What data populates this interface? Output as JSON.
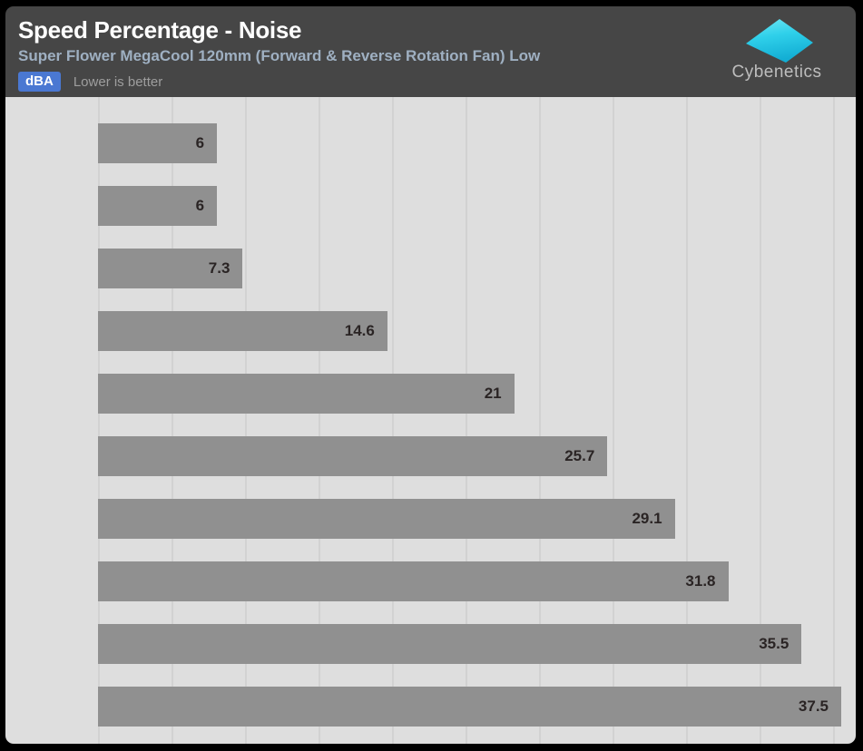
{
  "header": {
    "title": "Speed Percentage - Noise",
    "subtitle": "Super Flower MegaCool 120mm (Forward & Reverse Rotation Fan) Low",
    "unit_badge": "dBA",
    "note": "Lower is better",
    "brand": "Cybenetics"
  },
  "colors": {
    "header_bg": "#464646",
    "badge_bg": "#4a78d2",
    "subtitle": "#9fb0c2",
    "note_text": "#9e9e9e",
    "brand_text": "#bdbdbd",
    "chart_bg": "#dedede",
    "gridline": "#d2d2d2",
    "bar": "#909090",
    "bar_label": "#2a2424",
    "logo_top": "#55e0f2",
    "logo_bottom": "#13aed4"
  },
  "chart_data": {
    "type": "bar",
    "orientation": "horizontal",
    "title": "Speed Percentage - Noise",
    "subtitle": "Super Flower MegaCool 120mm (Forward & Reverse Rotation Fan) Low",
    "unit": "dBA",
    "note": "Lower is better",
    "values": [
      6,
      6,
      7.3,
      14.6,
      21,
      25.7,
      29.1,
      31.8,
      35.5,
      37.5
    ],
    "labels": [
      "6",
      "6",
      "7.3",
      "14.6",
      "21",
      "25.7",
      "29.1",
      "31.8",
      "35.5",
      "37.5"
    ],
    "xlim": [
      0,
      37.5
    ],
    "grid": "vertical",
    "gridline_count": 11,
    "legend": "none"
  }
}
